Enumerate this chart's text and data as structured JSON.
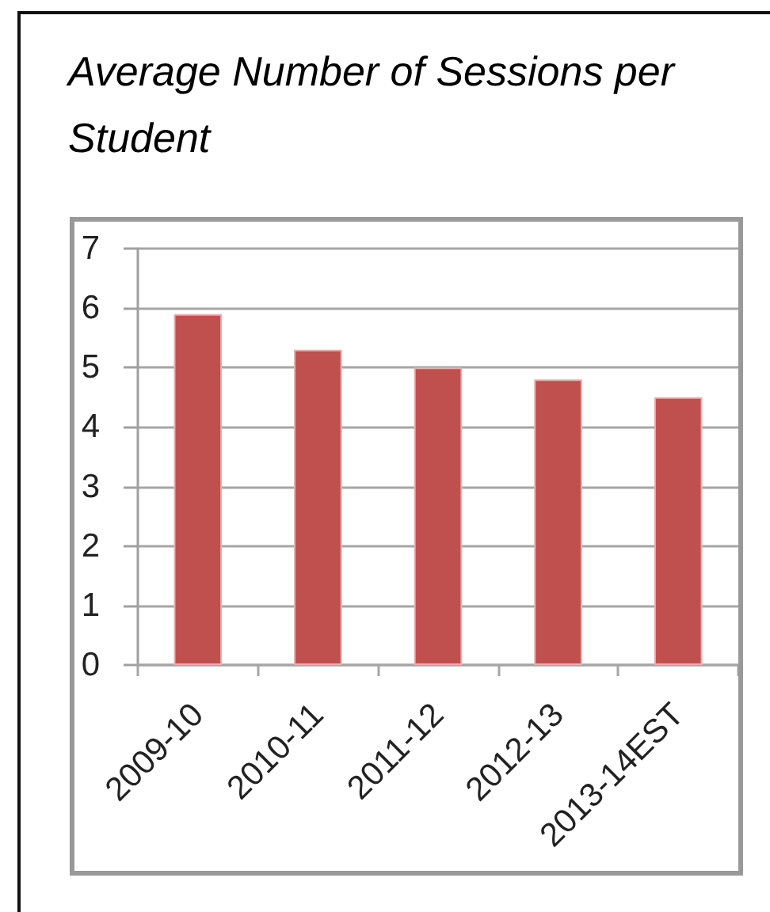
{
  "chart_data": {
    "type": "bar",
    "title": "Average Number of Sessions per Student",
    "categories": [
      "2009-10",
      "2010-11",
      "2011-12",
      "2012-13",
      "2013-14EST"
    ],
    "values": [
      5.9,
      5.3,
      5.0,
      4.8,
      4.5
    ],
    "color": "#c0504d",
    "ylim": [
      0,
      7
    ],
    "yticks": [
      0,
      1,
      2,
      3,
      4,
      5,
      6,
      7
    ],
    "grid": "y"
  }
}
